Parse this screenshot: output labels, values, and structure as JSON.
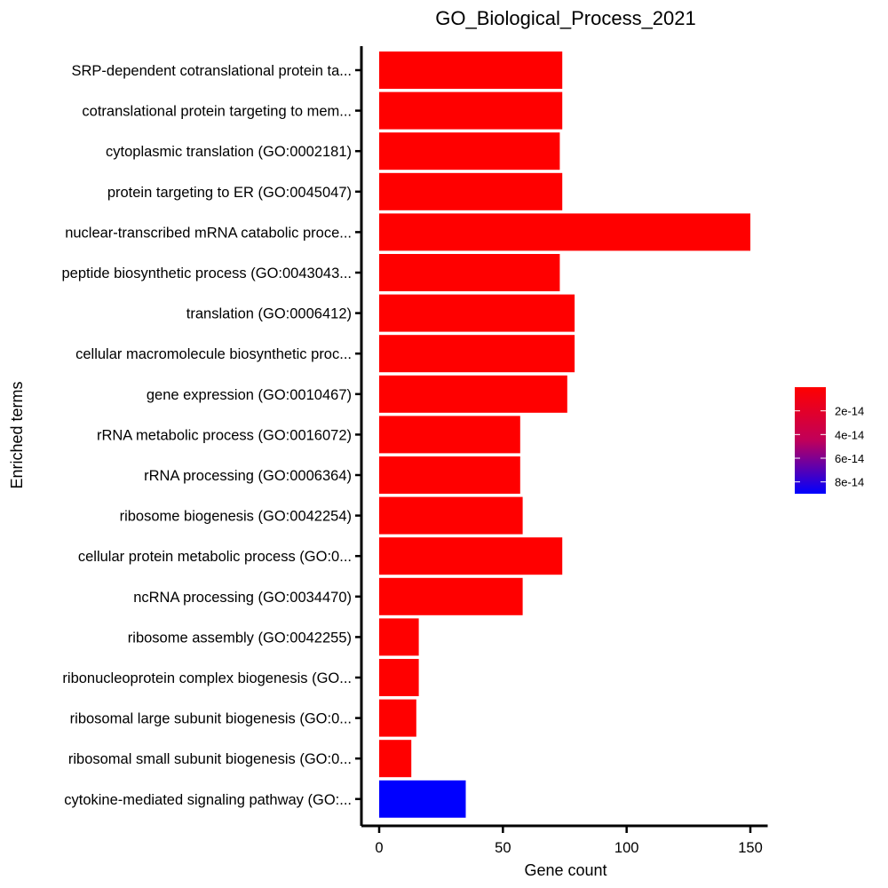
{
  "chart_data": {
    "type": "bar",
    "orientation": "horizontal",
    "title": "GO_Biological_Process_2021",
    "xlabel": "Gene count",
    "ylabel": "Enriched terms",
    "xlim": [
      0,
      157
    ],
    "xticks": [
      0,
      50,
      100,
      150
    ],
    "categories": [
      "SRP-dependent cotranslational protein ta...",
      "cotranslational protein targeting to mem...",
      "cytoplasmic translation (GO:0002181)",
      "protein targeting to ER (GO:0045047)",
      "nuclear-transcribed mRNA catabolic proce...",
      "peptide biosynthetic process (GO:0043043...",
      "translation (GO:0006412)",
      "cellular macromolecule biosynthetic proc...",
      "gene expression (GO:0010467)",
      "rRNA metabolic process (GO:0016072)",
      "rRNA processing (GO:0006364)",
      "ribosome biogenesis (GO:0042254)",
      "cellular protein metabolic process (GO:0...",
      "ncRNA processing (GO:0034470)",
      "ribosome assembly (GO:0042255)",
      "ribonucleoprotein complex biogenesis (GO...",
      "ribosomal large subunit biogenesis (GO:0...",
      "ribosomal small subunit biogenesis (GO:0...",
      "cytokine-mediated signaling pathway (GO:..."
    ],
    "values": [
      74,
      74,
      73,
      74,
      150,
      73,
      79,
      79,
      76,
      57,
      57,
      58,
      74,
      58,
      16,
      16,
      15,
      13,
      35
    ],
    "color_values": [
      1e-20,
      1e-20,
      1e-20,
      1e-20,
      1e-20,
      1e-20,
      1e-20,
      1e-20,
      1e-20,
      1e-20,
      1e-20,
      1e-20,
      1e-20,
      1e-20,
      1e-20,
      1e-20,
      1e-20,
      1e-20,
      9e-14
    ],
    "colorbar": {
      "ticks": [
        "2e-14",
        "4e-14",
        "6e-14",
        "8e-14"
      ],
      "tick_values": [
        2e-14,
        4e-14,
        6e-14,
        8e-14
      ],
      "range": [
        0,
        9e-14
      ],
      "color_low": "#ff0000",
      "color_high": "#0000ff",
      "placement": "right"
    },
    "grid": false
  }
}
